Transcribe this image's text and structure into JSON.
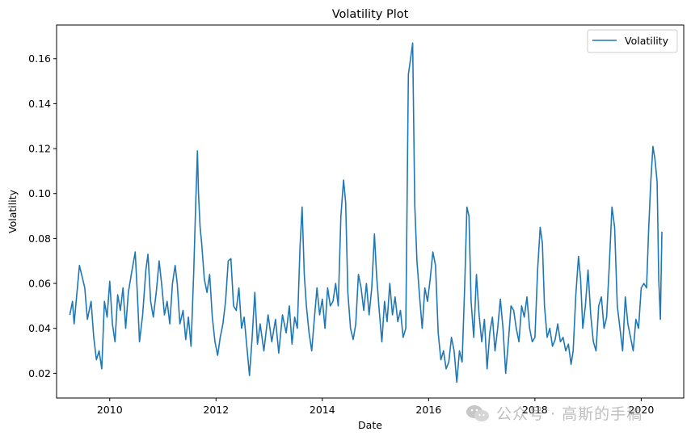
{
  "chart_data": {
    "type": "line",
    "title": "Volatility Plot",
    "xlabel": "Date",
    "ylabel": "Volatility",
    "xlim": [
      2009.0,
      2020.8
    ],
    "ylim": [
      0.009,
      0.175
    ],
    "xticks": [
      "2010",
      "2012",
      "2014",
      "2016",
      "2018",
      "2020"
    ],
    "yticks": [
      "0.02",
      "0.04",
      "0.06",
      "0.08",
      "0.10",
      "0.12",
      "0.14",
      "0.16"
    ],
    "legend": "upper right",
    "grid": false,
    "series": [
      {
        "name": "Volatility",
        "color": "#1f77b4",
        "points": [
          [
            2009.25,
            0.046
          ],
          [
            2009.3,
            0.052
          ],
          [
            2009.33,
            0.042
          ],
          [
            2009.38,
            0.055
          ],
          [
            2009.43,
            0.068
          ],
          [
            2009.48,
            0.063
          ],
          [
            2009.53,
            0.058
          ],
          [
            2009.58,
            0.044
          ],
          [
            2009.65,
            0.052
          ],
          [
            2009.7,
            0.036
          ],
          [
            2009.75,
            0.026
          ],
          [
            2009.8,
            0.03
          ],
          [
            2009.85,
            0.022
          ],
          [
            2009.9,
            0.052
          ],
          [
            2009.95,
            0.045
          ],
          [
            2010.0,
            0.061
          ],
          [
            2010.05,
            0.042
          ],
          [
            2010.1,
            0.034
          ],
          [
            2010.15,
            0.055
          ],
          [
            2010.2,
            0.048
          ],
          [
            2010.25,
            0.058
          ],
          [
            2010.3,
            0.04
          ],
          [
            2010.35,
            0.056
          ],
          [
            2010.42,
            0.066
          ],
          [
            2010.48,
            0.074
          ],
          [
            2010.52,
            0.055
          ],
          [
            2010.56,
            0.034
          ],
          [
            2010.62,
            0.046
          ],
          [
            2010.68,
            0.066
          ],
          [
            2010.72,
            0.073
          ],
          [
            2010.77,
            0.052
          ],
          [
            2010.82,
            0.045
          ],
          [
            2010.88,
            0.057
          ],
          [
            2010.93,
            0.07
          ],
          [
            2010.98,
            0.059
          ],
          [
            2011.03,
            0.046
          ],
          [
            2011.08,
            0.052
          ],
          [
            2011.13,
            0.042
          ],
          [
            2011.18,
            0.06
          ],
          [
            2011.23,
            0.068
          ],
          [
            2011.27,
            0.06
          ],
          [
            2011.32,
            0.042
          ],
          [
            2011.38,
            0.048
          ],
          [
            2011.43,
            0.035
          ],
          [
            2011.48,
            0.045
          ],
          [
            2011.53,
            0.032
          ],
          [
            2011.58,
            0.065
          ],
          [
            2011.62,
            0.097
          ],
          [
            2011.65,
            0.119
          ],
          [
            2011.67,
            0.1
          ],
          [
            2011.7,
            0.085
          ],
          [
            2011.73,
            0.078
          ],
          [
            2011.78,
            0.062
          ],
          [
            2011.83,
            0.056
          ],
          [
            2011.88,
            0.064
          ],
          [
            2011.93,
            0.045
          ],
          [
            2011.98,
            0.034
          ],
          [
            2012.03,
            0.028
          ],
          [
            2012.08,
            0.036
          ],
          [
            2012.13,
            0.042
          ],
          [
            2012.18,
            0.052
          ],
          [
            2012.23,
            0.07
          ],
          [
            2012.28,
            0.071
          ],
          [
            2012.33,
            0.05
          ],
          [
            2012.38,
            0.048
          ],
          [
            2012.43,
            0.058
          ],
          [
            2012.48,
            0.04
          ],
          [
            2012.53,
            0.045
          ],
          [
            2012.58,
            0.032
          ],
          [
            2012.63,
            0.019
          ],
          [
            2012.68,
            0.036
          ],
          [
            2012.73,
            0.056
          ],
          [
            2012.78,
            0.033
          ],
          [
            2012.83,
            0.042
          ],
          [
            2012.9,
            0.03
          ],
          [
            2012.98,
            0.046
          ],
          [
            2013.05,
            0.034
          ],
          [
            2013.12,
            0.044
          ],
          [
            2013.18,
            0.029
          ],
          [
            2013.25,
            0.046
          ],
          [
            2013.32,
            0.038
          ],
          [
            2013.38,
            0.05
          ],
          [
            2013.43,
            0.033
          ],
          [
            2013.48,
            0.045
          ],
          [
            2013.53,
            0.04
          ],
          [
            2013.58,
            0.076
          ],
          [
            2013.62,
            0.094
          ],
          [
            2013.66,
            0.064
          ],
          [
            2013.7,
            0.05
          ],
          [
            2013.75,
            0.038
          ],
          [
            2013.8,
            0.03
          ],
          [
            2013.85,
            0.044
          ],
          [
            2013.9,
            0.058
          ],
          [
            2013.95,
            0.046
          ],
          [
            2014.0,
            0.053
          ],
          [
            2014.05,
            0.04
          ],
          [
            2014.1,
            0.058
          ],
          [
            2014.15,
            0.05
          ],
          [
            2014.2,
            0.052
          ],
          [
            2014.25,
            0.06
          ],
          [
            2014.3,
            0.05
          ],
          [
            2014.35,
            0.09
          ],
          [
            2014.4,
            0.106
          ],
          [
            2014.44,
            0.096
          ],
          [
            2014.48,
            0.056
          ],
          [
            2014.53,
            0.04
          ],
          [
            2014.58,
            0.035
          ],
          [
            2014.63,
            0.042
          ],
          [
            2014.68,
            0.064
          ],
          [
            2014.73,
            0.058
          ],
          [
            2014.78,
            0.048
          ],
          [
            2014.83,
            0.06
          ],
          [
            2014.88,
            0.046
          ],
          [
            2014.93,
            0.058
          ],
          [
            2014.98,
            0.082
          ],
          [
            2015.02,
            0.064
          ],
          [
            2015.07,
            0.048
          ],
          [
            2015.12,
            0.034
          ],
          [
            2015.17,
            0.052
          ],
          [
            2015.22,
            0.043
          ],
          [
            2015.27,
            0.06
          ],
          [
            2015.32,
            0.046
          ],
          [
            2015.37,
            0.054
          ],
          [
            2015.42,
            0.043
          ],
          [
            2015.47,
            0.048
          ],
          [
            2015.52,
            0.036
          ],
          [
            2015.57,
            0.04
          ],
          [
            2015.62,
            0.153
          ],
          [
            2015.66,
            0.16
          ],
          [
            2015.7,
            0.167
          ],
          [
            2015.74,
            0.095
          ],
          [
            2015.78,
            0.07
          ],
          [
            2015.83,
            0.054
          ],
          [
            2015.88,
            0.04
          ],
          [
            2015.93,
            0.058
          ],
          [
            2015.98,
            0.052
          ],
          [
            2016.03,
            0.062
          ],
          [
            2016.08,
            0.074
          ],
          [
            2016.13,
            0.068
          ],
          [
            2016.18,
            0.038
          ],
          [
            2016.23,
            0.026
          ],
          [
            2016.28,
            0.03
          ],
          [
            2016.33,
            0.022
          ],
          [
            2016.38,
            0.025
          ],
          [
            2016.43,
            0.036
          ],
          [
            2016.48,
            0.03
          ],
          [
            2016.53,
            0.016
          ],
          [
            2016.58,
            0.03
          ],
          [
            2016.63,
            0.025
          ],
          [
            2016.68,
            0.06
          ],
          [
            2016.72,
            0.094
          ],
          [
            2016.76,
            0.09
          ],
          [
            2016.8,
            0.052
          ],
          [
            2016.85,
            0.036
          ],
          [
            2016.9,
            0.064
          ],
          [
            2016.95,
            0.046
          ],
          [
            2017.0,
            0.034
          ],
          [
            2017.05,
            0.044
          ],
          [
            2017.1,
            0.022
          ],
          [
            2017.15,
            0.038
          ],
          [
            2017.2,
            0.045
          ],
          [
            2017.25,
            0.03
          ],
          [
            2017.3,
            0.04
          ],
          [
            2017.35,
            0.053
          ],
          [
            2017.4,
            0.04
          ],
          [
            2017.45,
            0.02
          ],
          [
            2017.5,
            0.034
          ],
          [
            2017.55,
            0.05
          ],
          [
            2017.6,
            0.048
          ],
          [
            2017.65,
            0.04
          ],
          [
            2017.7,
            0.034
          ],
          [
            2017.75,
            0.05
          ],
          [
            2017.8,
            0.045
          ],
          [
            2017.85,
            0.054
          ],
          [
            2017.9,
            0.04
          ],
          [
            2017.95,
            0.034
          ],
          [
            2018.0,
            0.036
          ],
          [
            2018.05,
            0.066
          ],
          [
            2018.1,
            0.085
          ],
          [
            2018.14,
            0.078
          ],
          [
            2018.18,
            0.05
          ],
          [
            2018.23,
            0.036
          ],
          [
            2018.28,
            0.04
          ],
          [
            2018.33,
            0.032
          ],
          [
            2018.38,
            0.035
          ],
          [
            2018.43,
            0.042
          ],
          [
            2018.48,
            0.034
          ],
          [
            2018.53,
            0.036
          ],
          [
            2018.58,
            0.03
          ],
          [
            2018.63,
            0.033
          ],
          [
            2018.68,
            0.024
          ],
          [
            2018.72,
            0.03
          ],
          [
            2018.77,
            0.055
          ],
          [
            2018.82,
            0.072
          ],
          [
            2018.86,
            0.062
          ],
          [
            2018.9,
            0.04
          ],
          [
            2018.95,
            0.05
          ],
          [
            2019.0,
            0.066
          ],
          [
            2019.05,
            0.046
          ],
          [
            2019.1,
            0.034
          ],
          [
            2019.15,
            0.03
          ],
          [
            2019.2,
            0.05
          ],
          [
            2019.25,
            0.054
          ],
          [
            2019.3,
            0.04
          ],
          [
            2019.35,
            0.045
          ],
          [
            2019.4,
            0.068
          ],
          [
            2019.45,
            0.094
          ],
          [
            2019.5,
            0.085
          ],
          [
            2019.55,
            0.05
          ],
          [
            2019.6,
            0.04
          ],
          [
            2019.65,
            0.03
          ],
          [
            2019.7,
            0.054
          ],
          [
            2019.75,
            0.042
          ],
          [
            2019.8,
            0.036
          ],
          [
            2019.85,
            0.03
          ],
          [
            2019.9,
            0.044
          ],
          [
            2019.95,
            0.04
          ],
          [
            2020.0,
            0.058
          ],
          [
            2020.05,
            0.06
          ],
          [
            2020.1,
            0.058
          ],
          [
            2020.14,
            0.084
          ],
          [
            2020.18,
            0.105
          ],
          [
            2020.22,
            0.121
          ],
          [
            2020.26,
            0.115
          ],
          [
            2020.3,
            0.105
          ],
          [
            2020.33,
            0.062
          ],
          [
            2020.36,
            0.044
          ],
          [
            2020.39,
            0.083
          ]
        ]
      }
    ]
  },
  "watermark": {
    "icon": "wechat-icon",
    "text": "公众号 · 高斯的手稿"
  }
}
